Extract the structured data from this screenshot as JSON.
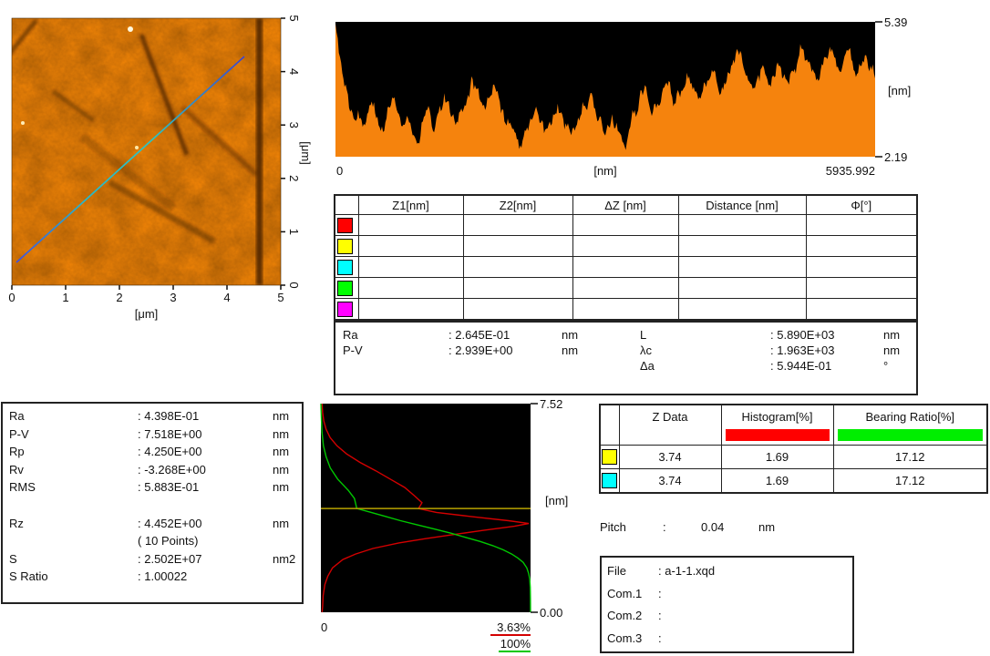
{
  "app": {
    "background": "#ffffff"
  },
  "afm_image": {
    "xlabel": "[μm]",
    "ylabel": "[μm]",
    "x_ticks": [
      "0",
      "1",
      "2",
      "3",
      "4",
      "5"
    ],
    "y_ticks": [
      "0",
      "1",
      "2",
      "3",
      "4",
      "5"
    ],
    "base_color": "#ec8106",
    "profile_line_colors": [
      "#4050dd",
      "#28b8c8",
      "#2fc4bf",
      "#3c44cc"
    ]
  },
  "chart_data": [
    {
      "id": "line-profile",
      "type": "area",
      "title": "Height profile along measurement line",
      "xlabel": "[nm]",
      "ylabel": "[nm]",
      "x_range": [
        0,
        5935.992
      ],
      "y_range": [
        2.19,
        5.39
      ],
      "x_tick_labels": [
        "0",
        "5935.992"
      ],
      "y_tick_labels": [
        "5.39",
        "2.19"
      ],
      "fill_color": "#f5830d",
      "bg_color": "#000000",
      "values_nm": [
        5.35,
        4.55,
        3.85,
        3.35,
        3.1,
        3.3,
        2.9,
        3.2,
        3.5,
        3.1,
        2.8,
        3.0,
        3.35,
        3.6,
        3.2,
        2.95,
        3.1,
        2.7,
        2.5,
        3.0,
        3.3,
        3.15,
        2.9,
        3.4,
        3.7,
        3.5,
        3.2,
        3.0,
        3.25,
        3.55,
        4.1,
        3.8,
        3.5,
        3.3,
        3.6,
        3.9,
        3.6,
        3.3,
        3.1,
        2.85,
        2.6,
        2.4,
        2.8,
        3.1,
        3.3,
        3.0,
        2.75,
        2.95,
        3.2,
        3.45,
        3.2,
        2.9,
        2.7,
        2.9,
        3.15,
        3.4,
        3.6,
        3.35,
        3.05,
        2.8,
        2.95,
        3.2,
        3.0,
        2.7,
        2.35,
        2.9,
        3.3,
        3.55,
        3.75,
        3.5,
        3.25,
        3.45,
        3.7,
        3.95,
        3.7,
        3.45,
        3.6,
        3.85,
        4.1,
        3.85,
        3.55,
        3.75,
        4.0,
        4.25,
        4.0,
        3.7,
        3.9,
        4.15,
        4.4,
        4.6,
        4.3,
        4.0,
        3.8,
        4.05,
        4.3,
        4.1,
        3.85,
        4.1,
        4.35,
        4.15,
        3.9,
        4.2,
        4.5,
        4.75,
        4.5,
        4.2,
        4.0,
        4.25,
        4.55,
        4.8,
        4.55,
        4.25,
        4.45,
        4.7,
        4.45,
        4.15,
        4.35,
        4.6,
        4.35,
        4.05
      ]
    },
    {
      "id": "height-histogram",
      "type": "line",
      "title": "Height histogram and bearing ratio",
      "ylabel": "[nm]",
      "y_range": [
        0,
        7.52
      ],
      "y_tick_labels": [
        "7.52",
        "0.00"
      ],
      "x_origin_label": "0",
      "bg_color": "#000000",
      "marker_line": {
        "z_nm": 3.74,
        "color": "#b8a300"
      },
      "series": [
        {
          "name": "Histogram",
          "color": "#d40000",
          "axis_max_label": "3.63%",
          "axis_max": 3.63,
          "points_z_pct": [
            [
              7.52,
              0.02
            ],
            [
              7.2,
              0.03
            ],
            [
              6.9,
              0.05
            ],
            [
              6.6,
              0.09
            ],
            [
              6.3,
              0.16
            ],
            [
              6.0,
              0.28
            ],
            [
              5.7,
              0.45
            ],
            [
              5.4,
              0.68
            ],
            [
              5.1,
              0.95
            ],
            [
              4.8,
              1.2
            ],
            [
              4.5,
              1.45
            ],
            [
              4.2,
              1.62
            ],
            [
              3.95,
              1.75
            ],
            [
              3.74,
              1.69
            ],
            [
              3.6,
              2.0
            ],
            [
              3.45,
              2.6
            ],
            [
              3.3,
              3.25
            ],
            [
              3.2,
              3.6
            ],
            [
              3.1,
              3.35
            ],
            [
              2.95,
              2.8
            ],
            [
              2.8,
              2.3
            ],
            [
              2.65,
              1.8
            ],
            [
              2.5,
              1.35
            ],
            [
              2.3,
              0.9
            ],
            [
              2.1,
              0.6
            ],
            [
              1.9,
              0.38
            ],
            [
              1.6,
              0.2
            ],
            [
              1.3,
              0.12
            ],
            [
              1.0,
              0.07
            ],
            [
              0.6,
              0.04
            ],
            [
              0.2,
              0.03
            ],
            [
              0.0,
              0.02
            ]
          ]
        },
        {
          "name": "Bearing Ratio",
          "color": "#00c800",
          "axis_max_label": "100%",
          "axis_max": 100,
          "points_z_pct": [
            [
              7.52,
              0.0
            ],
            [
              7.0,
              0.2
            ],
            [
              6.5,
              0.5
            ],
            [
              6.0,
              1.2
            ],
            [
              5.6,
              2.5
            ],
            [
              5.2,
              4.5
            ],
            [
              4.8,
              8.0
            ],
            [
              4.4,
              13.0
            ],
            [
              4.1,
              16.0
            ],
            [
              3.74,
              17.12
            ],
            [
              3.6,
              24.0
            ],
            [
              3.45,
              31.0
            ],
            [
              3.3,
              38.0
            ],
            [
              3.15,
              46.0
            ],
            [
              3.0,
              54.0
            ],
            [
              2.85,
              62.0
            ],
            [
              2.7,
              69.0
            ],
            [
              2.55,
              76.0
            ],
            [
              2.4,
              82.0
            ],
            [
              2.25,
              87.0
            ],
            [
              2.1,
              91.0
            ],
            [
              1.95,
              94.0
            ],
            [
              1.8,
              96.5
            ],
            [
              1.6,
              98.2
            ],
            [
              1.4,
              99.1
            ],
            [
              1.2,
              99.6
            ],
            [
              0.9,
              99.85
            ],
            [
              0.5,
              99.95
            ],
            [
              0.0,
              100.0
            ]
          ]
        }
      ]
    }
  ],
  "measurement_table": {
    "headers": [
      "",
      "Z1[nm]",
      "Z2[nm]",
      "ΔZ [nm]",
      "Distance [nm]",
      "Φ[°]"
    ],
    "rows": [
      {
        "color": "#ff0000",
        "values": [
          "",
          "",
          "",
          "",
          ""
        ]
      },
      {
        "color": "#ffff00",
        "values": [
          "",
          "",
          "",
          "",
          ""
        ]
      },
      {
        "color": "#00ffff",
        "values": [
          "",
          "",
          "",
          "",
          ""
        ]
      },
      {
        "color": "#00ff00",
        "values": [
          "",
          "",
          "",
          "",
          ""
        ]
      },
      {
        "color": "#ff00ff",
        "values": [
          "",
          "",
          "",
          "",
          ""
        ]
      }
    ]
  },
  "line_stats": {
    "left": [
      {
        "label": "Ra",
        "value": ": 2.645E-01",
        "unit": "nm"
      },
      {
        "label": "P-V",
        "value": ": 2.939E+00",
        "unit": "nm"
      }
    ],
    "right": [
      {
        "label": "L",
        "value": ": 5.890E+03",
        "unit": "nm"
      },
      {
        "label": "λc",
        "value": ": 1.963E+03",
        "unit": "nm"
      },
      {
        "label": "Δa",
        "value": ": 5.944E-01",
        "unit": "°"
      }
    ]
  },
  "area_stats": {
    "rows": [
      {
        "label": "Ra",
        "value": ": 4.398E-01",
        "unit": "nm"
      },
      {
        "label": "P-V",
        "value": ": 7.518E+00",
        "unit": "nm"
      },
      {
        "label": "Rp",
        "value": ": 4.250E+00",
        "unit": "nm"
      },
      {
        "label": "Rv",
        "value": ": -3.268E+00",
        "unit": "nm"
      },
      {
        "label": "RMS",
        "value": ": 5.883E-01",
        "unit": "nm"
      },
      {
        "label": "",
        "value": "",
        "unit": ""
      },
      {
        "label": "Rz",
        "value": ": 4.452E+00",
        "unit": "nm"
      },
      {
        "label": "",
        "value": "( 10 Points)",
        "unit": ""
      },
      {
        "label": "S",
        "value": ": 2.502E+07",
        "unit": "nm2"
      },
      {
        "label": "S Ratio",
        "value": ": 1.00022",
        "unit": ""
      }
    ]
  },
  "zdata_table": {
    "headers": [
      "",
      "Z Data",
      "Histogram[%]",
      "Bearing Ratio[%]"
    ],
    "header_bar_colors": [
      "",
      "",
      "#ff0000",
      "#00ee00"
    ],
    "rows": [
      {
        "color": "#ffff00",
        "values": [
          "3.74",
          "1.69",
          "17.12"
        ]
      },
      {
        "color": "#00ffff",
        "values": [
          "3.74",
          "1.69",
          "17.12"
        ]
      }
    ]
  },
  "pitch": {
    "label": "Pitch",
    "colon": ":",
    "value": "0.04",
    "unit": "nm"
  },
  "file_info": {
    "rows": [
      {
        "label": "File",
        "value": ": a-1-1.xqd"
      },
      {
        "label": "Com.1",
        "value": ":"
      },
      {
        "label": "Com.2",
        "value": ":"
      },
      {
        "label": "Com.3",
        "value": ":"
      }
    ]
  }
}
